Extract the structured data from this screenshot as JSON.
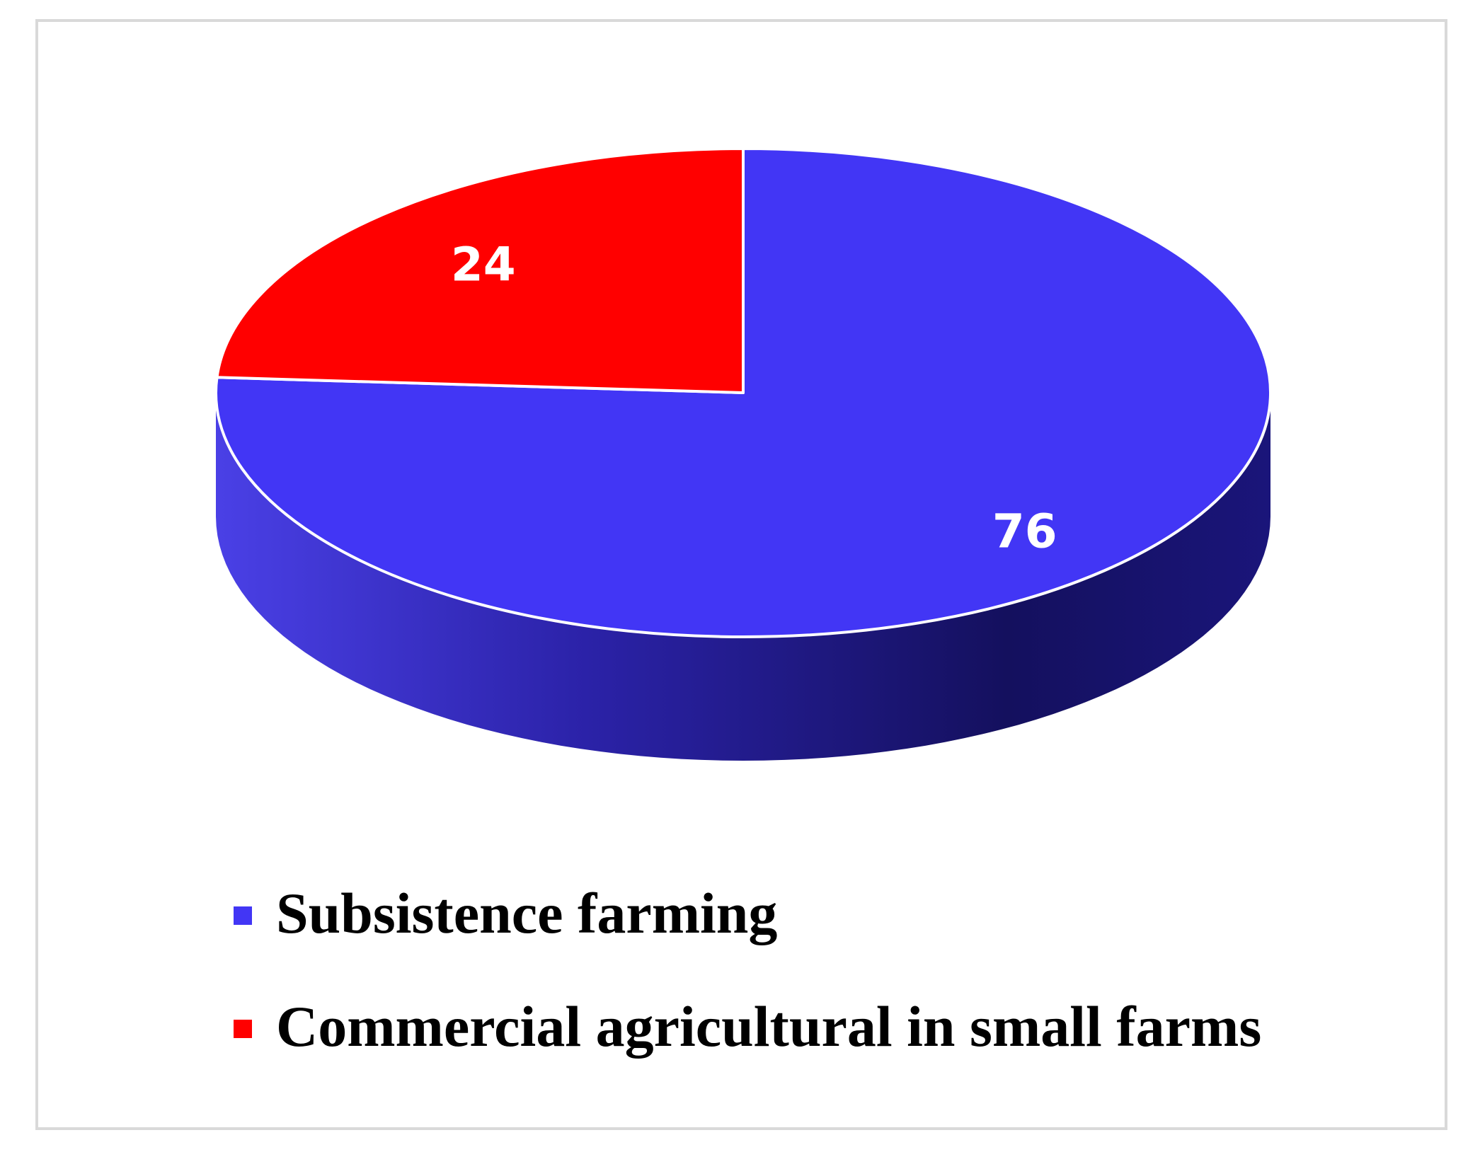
{
  "chart_data": {
    "type": "pie",
    "style": "3d",
    "title": "",
    "categories": [
      "Subsistence farming",
      "Commercial agricultural in small farms"
    ],
    "values": [
      76,
      24
    ],
    "data_labels": [
      "76",
      "24"
    ],
    "colors": [
      "#4236f5",
      "#ff0000"
    ],
    "legend_position": "bottom"
  },
  "legend": {
    "items": [
      {
        "label": "Subsistence farming",
        "color": "#4236f5"
      },
      {
        "label": "Commercial agricultural in small farms",
        "color": "#ff0000"
      }
    ]
  }
}
